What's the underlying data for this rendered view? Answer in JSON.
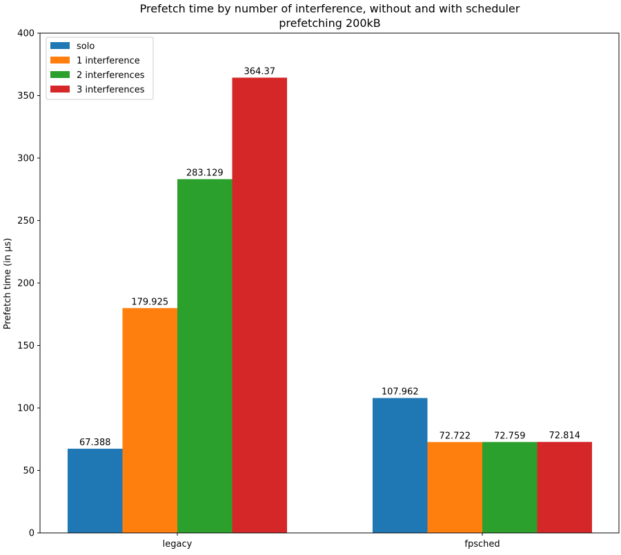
{
  "chart_data": {
    "type": "bar",
    "title": "Prefetch time by number of interference, without and with scheduler",
    "subtitle": "prefetching 200kB",
    "xlabel": "",
    "ylabel": "Prefetch time (in µs)",
    "ylim": [
      0,
      400
    ],
    "yticks": [
      0,
      50,
      100,
      150,
      200,
      250,
      300,
      350,
      400
    ],
    "grid": false,
    "legend_position": "top-left",
    "categories": [
      "legacy",
      "fpsched"
    ],
    "series": [
      {
        "name": "solo",
        "color": "#1f77b4",
        "values": [
          67.388,
          107.962
        ],
        "labels": [
          "67.388",
          "107.962"
        ]
      },
      {
        "name": "1 interference",
        "color": "#ff7f0e",
        "values": [
          179.925,
          72.722
        ],
        "labels": [
          "179.925",
          "72.722"
        ]
      },
      {
        "name": "2 interferences",
        "color": "#2ca02c",
        "values": [
          283.129,
          72.759
        ],
        "labels": [
          "283.129",
          "72.759"
        ]
      },
      {
        "name": "3 interferences",
        "color": "#d62728",
        "values": [
          364.37,
          72.814
        ],
        "labels": [
          "364.37",
          "72.814"
        ]
      }
    ]
  }
}
